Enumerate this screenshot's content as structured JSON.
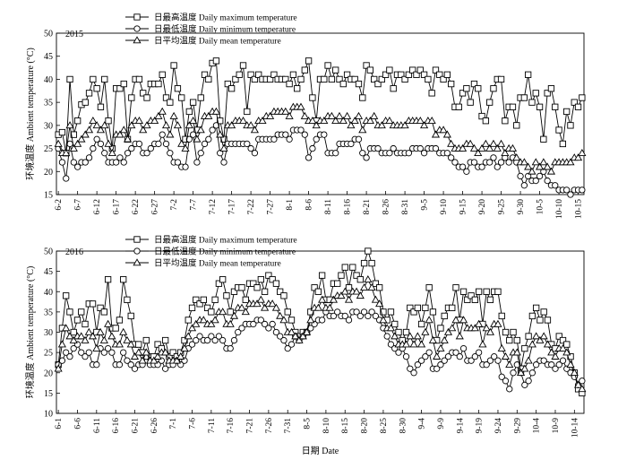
{
  "chart_data": [
    {
      "type": "line",
      "panel_label": "2015",
      "xlabel": "",
      "ylabel": "环境温度 Ambient temperature (°C)",
      "ylim": [
        15,
        50
      ],
      "yticks": [
        15,
        20,
        25,
        30,
        35,
        40,
        45,
        50
      ],
      "x_tick_labels": [
        "6-2",
        "6-7",
        "6-12",
        "6-17",
        "6-22",
        "6-27",
        "7-2",
        "7-7",
        "7-12",
        "7-17",
        "7-22",
        "7-27",
        "8-1",
        "8-6",
        "8-11",
        "8-16",
        "8-21",
        "8-26",
        "8-31",
        "9-5",
        "9-10",
        "9-15",
        "9-20",
        "9-25",
        "9-30",
        "10-5",
        "10-10",
        "10-15"
      ],
      "day_count": 137,
      "grid": false,
      "legend_position": "top-left",
      "series": [
        {
          "name": "日最高温度 Daily maximum temperature",
          "marker": "square",
          "values": [
            28,
            28.5,
            24,
            40,
            28,
            31,
            34.5,
            35,
            37,
            40,
            38,
            34,
            40,
            31,
            25,
            38,
            38,
            39,
            27,
            36,
            40,
            40,
            37,
            36,
            39,
            39,
            39,
            41,
            36,
            35,
            43,
            38,
            36,
            27,
            33,
            35,
            29,
            36,
            41,
            40,
            43.5,
            44,
            31,
            27,
            39,
            38,
            40,
            41,
            43,
            33,
            41,
            40,
            41,
            40,
            40,
            40,
            41,
            40,
            40,
            40,
            39,
            41,
            38,
            40,
            42,
            44,
            36,
            31,
            40,
            40,
            43,
            40,
            42,
            40,
            39,
            41,
            40,
            40,
            39,
            36,
            43,
            42,
            40,
            39,
            40,
            41,
            42,
            38,
            41,
            41,
            40,
            41,
            42,
            41,
            42,
            41,
            40,
            37,
            42,
            41,
            40,
            41,
            39,
            34,
            34,
            37,
            38,
            35,
            39,
            38,
            32,
            31,
            35,
            38,
            40,
            40,
            31,
            34,
            34,
            30,
            36,
            36,
            41,
            35,
            37,
            34,
            27,
            37,
            38,
            34,
            29,
            26,
            33,
            30,
            35,
            34,
            36
          ]
        },
        {
          "name": "日最低温度 Daily minimum temperature",
          "marker": "circle",
          "values": [
            25,
            22,
            18.5,
            26,
            22,
            21,
            22,
            22,
            23,
            25,
            27,
            26,
            24,
            22,
            22,
            22,
            23,
            22,
            24,
            25,
            26,
            26,
            24,
            24,
            25,
            26,
            26,
            28,
            26,
            24,
            22,
            22,
            21,
            21,
            27,
            28,
            22,
            24,
            26,
            27,
            29,
            30,
            24,
            22,
            26,
            26,
            26,
            26,
            26,
            26,
            25,
            24,
            27,
            27,
            27,
            27,
            27,
            28,
            28,
            28,
            27,
            29,
            29,
            29,
            28,
            23,
            25,
            27,
            28,
            28,
            24,
            24,
            24,
            26,
            26,
            26,
            26,
            27,
            27,
            24,
            23,
            25,
            25,
            25,
            24,
            24,
            24,
            25,
            24,
            24,
            24,
            24,
            25,
            25,
            25,
            24,
            25,
            25,
            25,
            24,
            24,
            24,
            23,
            22,
            21,
            21,
            20,
            22,
            22,
            21,
            21,
            22,
            22,
            23,
            21,
            22,
            23,
            22,
            23,
            22,
            19,
            17,
            19,
            18,
            18,
            19,
            20,
            18,
            17,
            17,
            16,
            16,
            16,
            15,
            16,
            16,
            16
          ]
        },
        {
          "name": "日平均温度 Daily mean temperature",
          "marker": "triangle",
          "values": [
            26,
            24,
            24,
            30,
            25,
            26,
            27,
            28,
            29,
            31,
            30,
            29,
            30,
            26,
            24,
            28,
            28,
            29,
            27,
            30,
            31,
            31,
            29,
            30,
            31,
            31,
            32,
            33,
            30,
            28,
            32,
            30,
            26,
            25,
            30,
            31,
            27,
            29,
            32,
            32,
            33,
            33,
            28,
            25,
            30,
            30,
            31,
            31,
            31,
            30,
            30,
            29,
            31,
            31,
            32,
            32,
            33,
            33,
            33,
            33,
            32,
            34,
            34,
            34,
            32,
            31,
            31,
            30,
            31,
            31,
            32,
            32,
            31,
            32,
            31,
            32,
            30,
            31,
            32,
            29,
            31,
            31,
            32,
            30,
            30,
            31,
            31,
            30,
            30,
            30,
            30,
            31,
            31,
            31,
            31,
            30,
            31,
            31,
            28,
            29,
            29,
            28,
            26,
            25,
            25,
            25,
            26,
            26,
            25,
            24,
            25,
            26,
            25,
            26,
            25,
            26,
            24,
            25,
            25,
            23,
            22,
            22,
            21,
            20,
            22,
            21,
            22,
            21,
            20,
            22,
            22,
            22,
            22,
            22,
            23,
            23,
            24
          ]
        }
      ]
    },
    {
      "type": "line",
      "panel_label": "2016",
      "xlabel": "日期 Date",
      "ylabel": "环境温度 Ambient temperature (°C)",
      "ylim": [
        10,
        50
      ],
      "yticks": [
        10,
        15,
        20,
        25,
        30,
        35,
        40,
        45,
        50
      ],
      "x_tick_labels": [
        "6-1",
        "6-6",
        "6-11",
        "6-16",
        "6-21",
        "6-26",
        "7-1",
        "7-6",
        "7-11",
        "7-16",
        "7-21",
        "7-26",
        "7-31",
        "8-5",
        "8-10",
        "8-15",
        "8-20",
        "8-25",
        "8-30",
        "9-4",
        "9-9",
        "9-14",
        "9-19",
        "9-24",
        "9-29",
        "10-4",
        "10-9",
        "10-14"
      ],
      "day_count": 138,
      "grid": false,
      "legend_position": "top-left",
      "series": [
        {
          "name": "日最高温度 Daily maximum temperature",
          "marker": "square",
          "values": [
            22,
            31,
            39,
            35,
            30,
            33,
            35,
            32,
            37,
            37,
            30,
            36,
            35,
            43,
            31,
            31,
            33,
            43,
            38,
            34,
            27,
            27,
            25,
            28,
            24,
            24,
            27,
            26,
            28,
            24,
            25,
            24,
            25,
            28,
            33,
            36,
            38,
            37,
            38,
            36,
            35,
            38,
            42,
            43,
            39,
            35,
            40,
            41,
            41,
            38,
            42,
            42,
            41,
            43,
            40,
            44,
            43,
            42,
            40,
            39,
            35,
            33,
            30,
            29,
            30,
            30,
            35,
            41,
            40,
            44,
            38,
            38,
            42,
            42,
            44,
            46,
            41,
            46,
            44,
            43,
            47,
            50,
            47,
            42,
            41,
            35,
            33,
            35,
            32,
            30,
            28,
            30,
            36,
            35,
            36,
            32,
            36,
            41,
            35,
            28,
            31,
            34,
            36,
            36,
            41,
            33,
            40,
            38,
            39,
            38,
            40,
            32,
            40,
            38,
            40,
            40,
            34,
            30,
            28,
            30,
            28,
            21,
            26,
            29,
            34,
            36,
            33,
            35,
            33,
            27,
            26,
            29,
            28,
            27,
            24,
            20,
            16,
            15
          ]
        },
        {
          "name": "日最低温度 Daily minimum temperature",
          "marker": "circle",
          "values": [
            22,
            23,
            25,
            24,
            26,
            27,
            25,
            24,
            25,
            22,
            22,
            26,
            25,
            26,
            25,
            22,
            22,
            25,
            23,
            22,
            21,
            22,
            22,
            24,
            22,
            22,
            22,
            23,
            21,
            22,
            22,
            23,
            22,
            23,
            26,
            27,
            28,
            29,
            28,
            28,
            29,
            28,
            29,
            28,
            26,
            26,
            28,
            30,
            31,
            32,
            32,
            32,
            33,
            33,
            32,
            31,
            32,
            30,
            29,
            28,
            26,
            27,
            29,
            28,
            29,
            30,
            31,
            32,
            33,
            33,
            35,
            34,
            34,
            35,
            34,
            34,
            33,
            35,
            35,
            34,
            35,
            34,
            35,
            34,
            33,
            31,
            29,
            27,
            26,
            25,
            26,
            24,
            21,
            20,
            22,
            23,
            24,
            25,
            21,
            21,
            22,
            23,
            24,
            25,
            25,
            24,
            26,
            23,
            23,
            24,
            25,
            22,
            22,
            23,
            24,
            23,
            19,
            18,
            16,
            20,
            22,
            20,
            17,
            18,
            20,
            22,
            23,
            23,
            22,
            22,
            21,
            22,
            23,
            21,
            20,
            19,
            17,
            18
          ]
        },
        {
          "name": "日平均温度 Daily mean temperature",
          "marker": "triangle",
          "values": [
            21,
            27,
            31,
            29,
            28,
            29,
            29,
            28,
            30,
            29,
            26,
            30,
            28,
            32,
            29,
            27,
            27,
            30,
            28,
            27,
            24,
            25,
            23,
            25,
            23,
            23,
            24,
            25,
            25,
            23,
            23,
            23,
            24,
            26,
            29,
            31,
            32,
            33,
            33,
            32,
            32,
            33,
            35,
            35,
            32,
            32,
            34,
            36,
            36,
            35,
            37,
            37,
            37,
            38,
            36,
            37,
            37,
            36,
            34,
            33,
            30,
            30,
            29,
            28,
            29,
            30,
            33,
            36,
            36,
            38,
            36,
            36,
            38,
            39,
            39,
            40,
            38,
            40,
            40,
            39,
            41,
            43,
            41,
            38,
            37,
            33,
            31,
            31,
            29,
            27,
            27,
            27,
            29,
            27,
            29,
            27,
            30,
            33,
            28,
            24,
            26,
            28,
            30,
            31,
            33,
            29,
            33,
            31,
            31,
            31,
            32,
            27,
            31,
            30,
            32,
            32,
            26,
            24,
            22,
            25,
            25,
            20,
            21,
            23,
            27,
            29,
            28,
            29,
            27,
            25,
            24,
            26,
            26,
            25,
            22,
            20,
            17,
            16
          ]
        }
      ]
    }
  ]
}
